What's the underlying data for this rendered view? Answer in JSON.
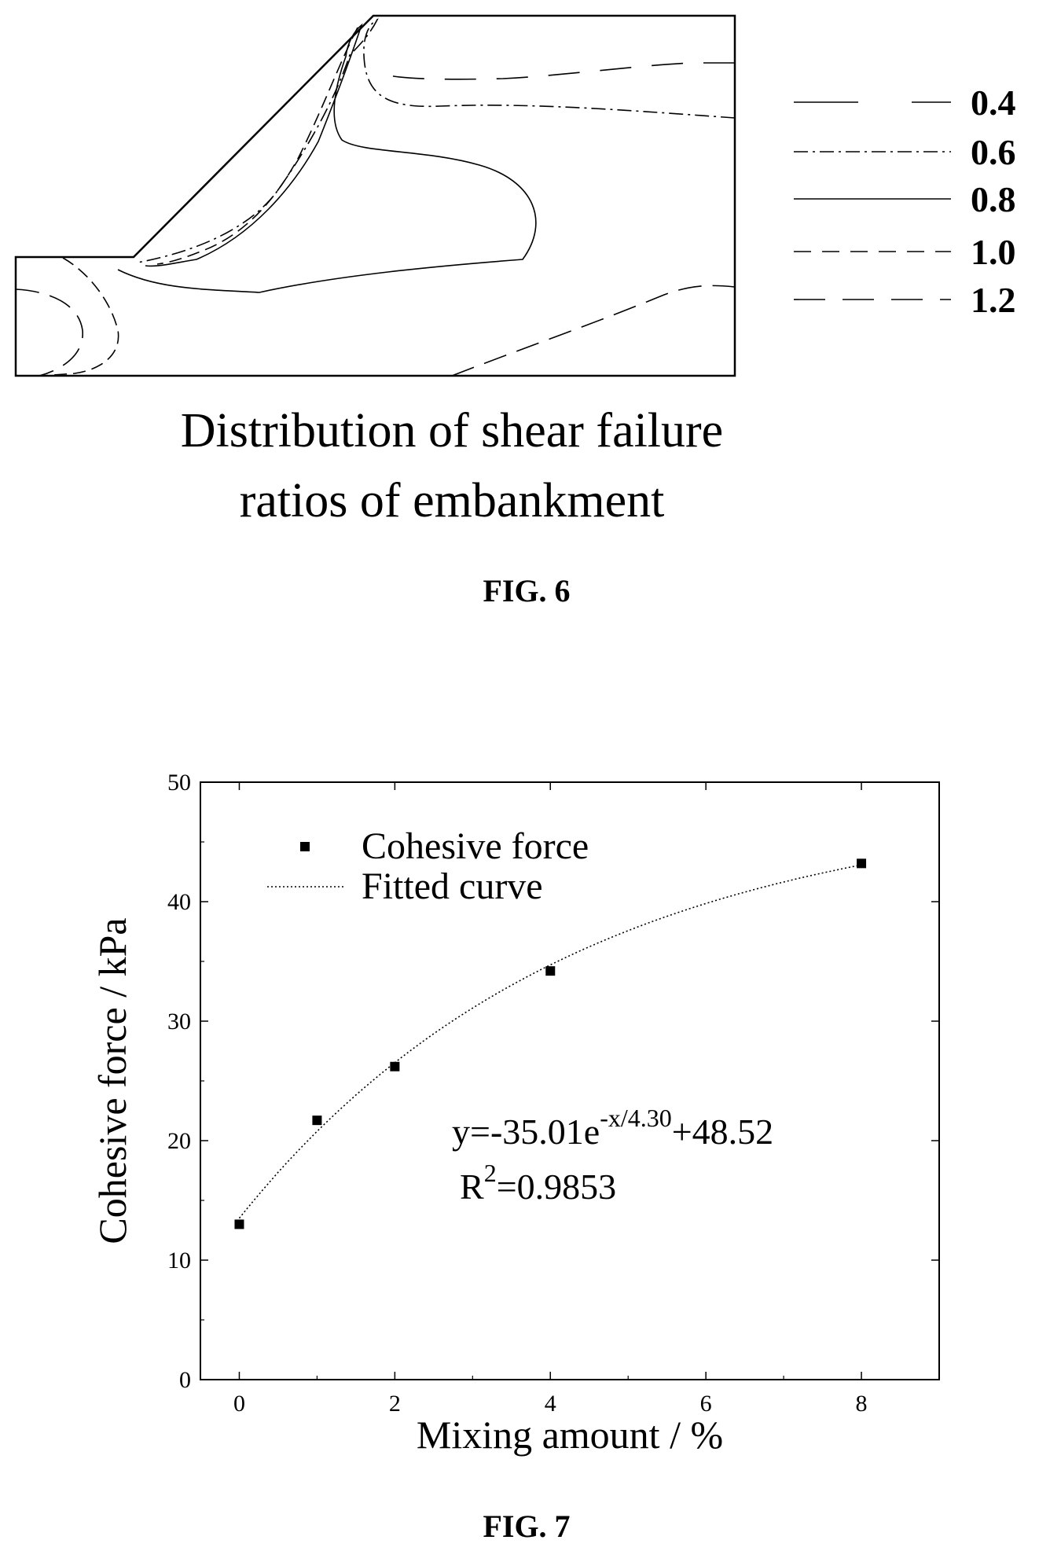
{
  "fig6": {
    "legend": [
      "0.4",
      "0.6",
      "0.8",
      "1.0",
      "1.2"
    ],
    "title_lines": [
      "Distribution of shear failure",
      "ratios of embankment"
    ],
    "caption": "FIG. 6"
  },
  "fig7": {
    "caption": "FIG. 7",
    "legend": {
      "points_label": "Cohesive force",
      "curve_label": "Fitted curve"
    },
    "equation": {
      "prefix": "y=-35.01e",
      "exponent": "-x/4.30",
      "suffix": "+48.52"
    },
    "r2": {
      "base": "R",
      "sup": "2",
      "value": "=0.9853"
    }
  },
  "chart_data": [
    {
      "type": "contour",
      "title": "Distribution of shear failure ratios of embankment",
      "levels": [
        0.4,
        0.6,
        0.8,
        1.0,
        1.2
      ],
      "legend_position": "right"
    },
    {
      "type": "scatter",
      "xlabel": "Mixing amount / %",
      "ylabel": "Cohesive force / kPa",
      "xlim": [
        -0.5,
        9.0
      ],
      "ylim": [
        0,
        50
      ],
      "xticks": [
        0,
        2,
        4,
        6,
        8
      ],
      "yticks": [
        0,
        10,
        20,
        30,
        40,
        50
      ],
      "series": [
        {
          "name": "Cohesive force",
          "type": "scatter",
          "x": [
            0,
            1,
            2,
            4,
            8
          ],
          "y": [
            13.0,
            21.7,
            26.2,
            34.2,
            43.2
          ]
        },
        {
          "name": "Fitted curve",
          "type": "line",
          "function": "y=-35.01e^(-x/4.30)+48.52",
          "x_range": [
            0,
            8
          ]
        }
      ],
      "annotations": [
        "y=-35.01e-x/4.30+48.52",
        "R2=0.9853"
      ],
      "legend_position": "top-left",
      "grid": false
    }
  ]
}
